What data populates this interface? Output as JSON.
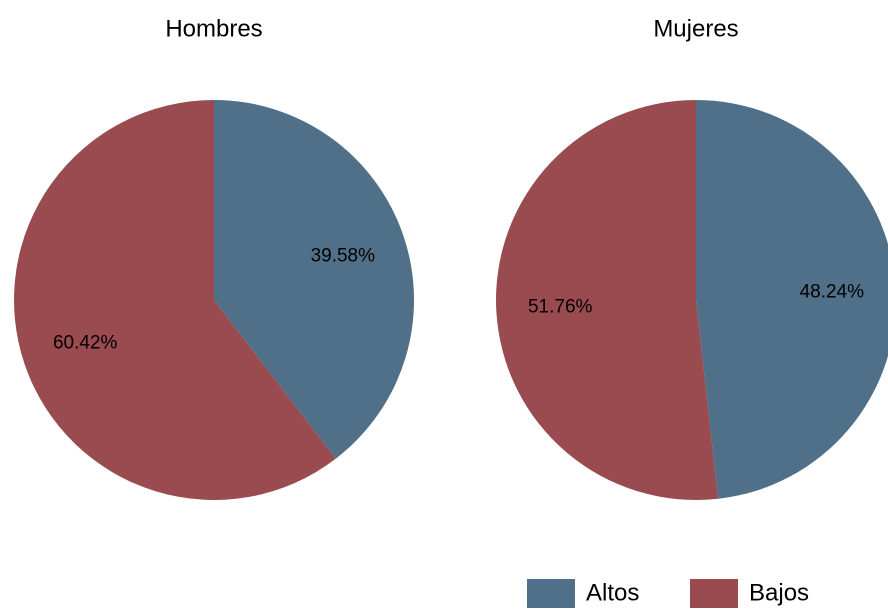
{
  "chart_data": {
    "type": "pie",
    "legend": {
      "position": "bottom-right",
      "items": [
        {
          "label": "Altos",
          "color": "#4f7088"
        },
        {
          "label": "Bajos",
          "color": "#994b50"
        }
      ]
    },
    "panels": [
      {
        "title": "Hombres",
        "slices": [
          {
            "category": "Altos",
            "value": 39.58,
            "label": "39.58%",
            "color": "#4f7088"
          },
          {
            "category": "Bajos",
            "value": 60.42,
            "label": "60.42%",
            "color": "#994b50"
          }
        ]
      },
      {
        "title": "Mujeres",
        "slices": [
          {
            "category": "Altos",
            "value": 48.24,
            "label": "48.24%",
            "color": "#4f7088"
          },
          {
            "category": "Bajos",
            "value": 51.76,
            "label": "51.76%",
            "color": "#994b50"
          }
        ]
      }
    ]
  }
}
